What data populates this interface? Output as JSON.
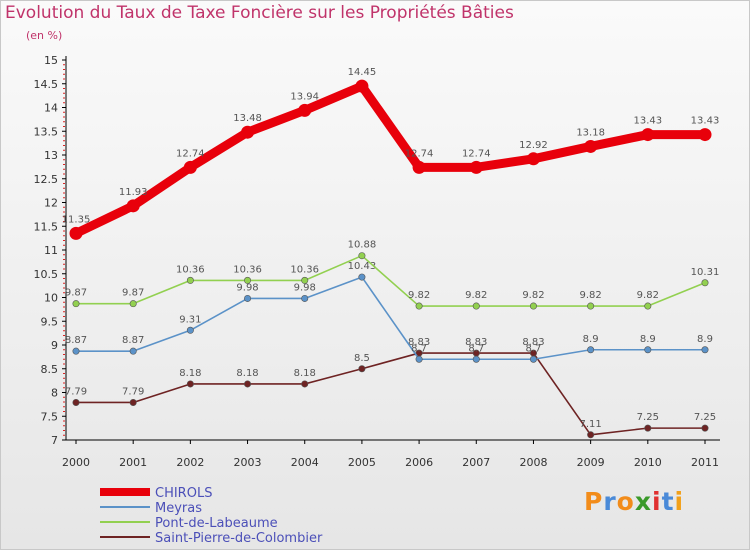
{
  "chart_data": {
    "type": "line",
    "title": "Evolution du Taux de Taxe Foncière sur les Propriétés Bâties",
    "subtitle": "(en %)",
    "x": [
      "2000",
      "2001",
      "2002",
      "2003",
      "2004",
      "2005",
      "2006",
      "2007",
      "2008",
      "2009",
      "2010",
      "2011"
    ],
    "ylim": [
      7,
      15
    ],
    "yticks": [
      "7",
      "7.5",
      "8",
      "8.5",
      "9",
      "9.5",
      "10",
      "10.5",
      "11",
      "11.5",
      "12",
      "12.5",
      "13",
      "13.5",
      "14",
      "14.5",
      "15"
    ],
    "grid": false,
    "legend_position": "bottom-left",
    "series": [
      {
        "name": "CHIROLS",
        "color": "#e8000b",
        "values": [
          11.35,
          11.93,
          12.74,
          13.48,
          13.94,
          14.45,
          12.74,
          12.74,
          12.92,
          13.18,
          13.43,
          13.43
        ],
        "labels": [
          "11.35",
          "11.93",
          "12.74",
          "13.48",
          "13.94",
          "14.45",
          "12.74",
          "12.74",
          "12.92",
          "13.18",
          "13.43",
          "13.43"
        ]
      },
      {
        "name": "Meyras",
        "color": "#5b92c8",
        "values": [
          8.87,
          8.87,
          9.31,
          9.98,
          9.98,
          10.43,
          8.7,
          8.7,
          8.7,
          8.9,
          8.9,
          8.9
        ],
        "labels": [
          "8.87",
          "8.87",
          "9.31",
          "9.98",
          "9.98",
          "10.43",
          "8.7",
          "8.7",
          "8.7",
          "8.9",
          "8.9",
          "8.9"
        ]
      },
      {
        "name": "Pont-de-Labeaume",
        "color": "#92d050",
        "values": [
          9.87,
          9.87,
          10.36,
          10.36,
          10.36,
          10.88,
          9.82,
          9.82,
          9.82,
          9.82,
          9.82,
          10.31
        ],
        "labels": [
          "9.87",
          "9.87",
          "10.36",
          "10.36",
          "10.36",
          "10.88",
          "9.82",
          "9.82",
          "9.82",
          "9.82",
          "9.82",
          "10.31"
        ]
      },
      {
        "name": "Saint-Pierre-de-Colombier",
        "color": "#6e2323",
        "values": [
          7.79,
          7.79,
          8.18,
          8.18,
          8.18,
          8.5,
          8.83,
          8.83,
          8.83,
          7.11,
          7.25,
          7.25
        ],
        "labels": [
          "7.79",
          "7.79",
          "8.18",
          "8.18",
          "8.18",
          "8.5",
          "8.83",
          "8.83",
          "8.83",
          "7.11",
          "7.25",
          "7.25"
        ]
      }
    ]
  },
  "logo": {
    "text": "Proxiti"
  }
}
